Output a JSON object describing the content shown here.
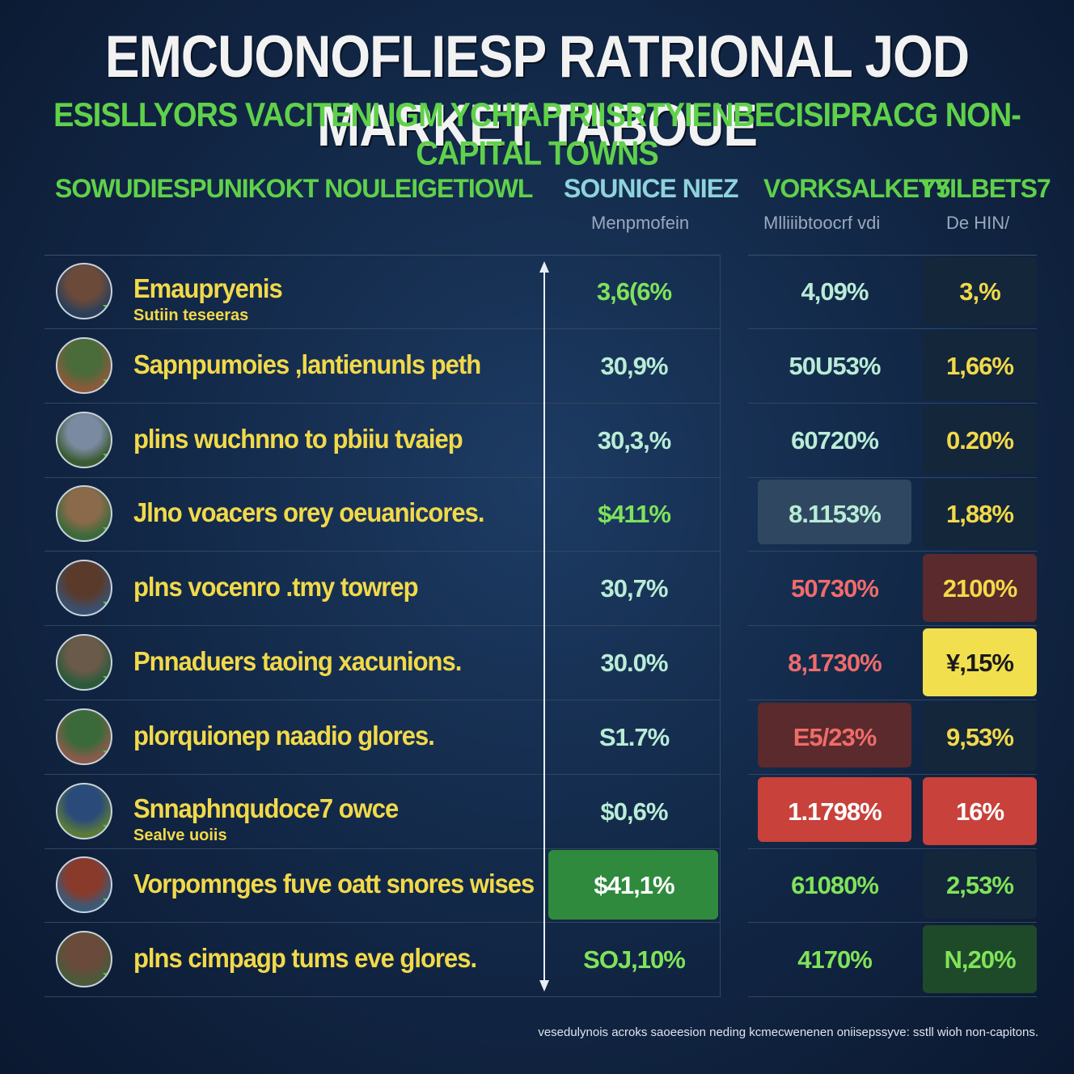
{
  "title": "EMCUONOFLIESP RATRIONAL JOD MARKET TABOUE",
  "subtitle": "ESISLLYORS VACITENI IGM YCHIAP RIISRTYIENBECISIPRACG NON-CAPITAL TOWNS",
  "columns": {
    "category_header": "SOWUDIESPUNIKOKT NOULEIGETIOWL",
    "col1_header": "SOUNICE NIEZ",
    "col1_sub": "Menpmofein",
    "col2_header": "VORKSALKETY",
    "col2_sub": "Mlliiibtoocrf vdi",
    "col3_header": "Y5ILBETS7",
    "col3_sub": "De HIN/"
  },
  "colors": {
    "green_text": "#7fe35a",
    "teal_text": "#b9ecd6",
    "yellow_text": "#f2d94a",
    "red_text": "#f06b6b",
    "highlight_yellow": "#f2df4d",
    "highlight_red": "#c8413b",
    "highlight_green": "#2f8a3d",
    "highlight_slate": "#2f4760",
    "highlight_dark_red": "#5a2a2c",
    "dark_cell": "#142639"
  },
  "rows": [
    {
      "label": "Emaupryenis",
      "sublabel": "Sutiin teseeras",
      "icon": "person-avatar-icon",
      "v1": "3,6(6%",
      "v2": "4,09%",
      "v3": "3,%",
      "c1": "green",
      "c2": "teal",
      "c3": "yellow",
      "b2": "",
      "b3": "dark"
    },
    {
      "label": "Sapnpumoies ,lantienunls peth",
      "sublabel": "",
      "icon": "person-avatar-icon",
      "v1": "30,9%",
      "v2": "50U53%",
      "v3": "1,66%",
      "c1": "teal",
      "c2": "teal",
      "c3": "yellow",
      "b2": "",
      "b3": "dark"
    },
    {
      "label": "plins wuchnno to pbiiu tvaiep",
      "sublabel": "",
      "icon": "building-avatar-icon",
      "v1": "30,3,%",
      "v2": "60720%",
      "v3": "0.20%",
      "c1": "teal",
      "c2": "teal",
      "c3": "yellow",
      "b2": "",
      "b3": "dark"
    },
    {
      "label": "Jlno voacers orey oeuanicores.",
      "sublabel": "",
      "icon": "building-avatar-icon",
      "v1": "$411%",
      "v2": "8.1153%",
      "v3": "1,88%",
      "c1": "green",
      "c2": "teal",
      "c3": "yellow",
      "b2": "slate",
      "b3": "dark"
    },
    {
      "label": "plns vocenro .tmy towrep",
      "sublabel": "",
      "icon": "person-avatar-icon",
      "v1": "30,7%",
      "v2": "50730%",
      "v3": "2100%",
      "c1": "teal",
      "c2": "red",
      "c3": "yellow",
      "b2": "",
      "b3": "darkred"
    },
    {
      "label": "Pnnaduers taoing xacunions.",
      "sublabel": "",
      "icon": "building-avatar-icon",
      "v1": "30.0%",
      "v2": "8,1730%",
      "v3": "¥,15%",
      "c1": "teal",
      "c2": "red",
      "c3": "dark",
      "b2": "",
      "b3": "yellow"
    },
    {
      "label": "plorquionep naadio glores.",
      "sublabel": "",
      "icon": "building-avatar-icon",
      "v1": "S1.7%",
      "v2": "E5/23%",
      "v3": "9,53%",
      "c1": "teal",
      "c2": "red",
      "c3": "yellow",
      "b2": "darkred",
      "b3": "dark"
    },
    {
      "label": "Snnaphnqudoce7 owce",
      "sublabel": "Sealve uoiis",
      "icon": "building-avatar-icon",
      "v1": "$0,6%",
      "v2": "1.1798%",
      "v3": "16%",
      "c1": "teal",
      "c2": "white",
      "c3": "white",
      "b2": "red",
      "b3": "red"
    },
    {
      "label": "Vorpomnges fuve oatt snores wises",
      "sublabel": "",
      "icon": "person-avatar-icon",
      "v1": "$41,1%",
      "v2": "61080%",
      "v3": "2,53%",
      "c1": "white",
      "c2": "green",
      "c3": "green",
      "b1": "green",
      "b2": "",
      "b3": "dark"
    },
    {
      "label": "plns cimpagp tums eve glores.",
      "sublabel": "",
      "icon": "building-avatar-icon",
      "v1": "SOJ,10%",
      "v2": "4170%",
      "v3": "N,20%",
      "c1": "green",
      "c2": "green",
      "c3": "green",
      "b2": "",
      "b3": "darkgreen"
    }
  ],
  "footnote": "vesedulynois acroks saoeesion neding kcmecwenenen oniisepssyve: sstll wioh non-capitons.",
  "chart_data": {
    "type": "table",
    "title": "EMCUONOFLIESP RATRIONAL JOD MARKET TABOUE",
    "subtitle": "ESISLLYORS VACITENI IGM YCHIAP RIISRTYIENBECISIPRACG NON-CAPITAL TOWNS",
    "columns": [
      "SOWUDIESPUNIKOKT NOULEIGETIOWL",
      "SOUNICE NIEZ",
      "VORKSALKETY",
      "Y5ILBETS7"
    ]
  }
}
